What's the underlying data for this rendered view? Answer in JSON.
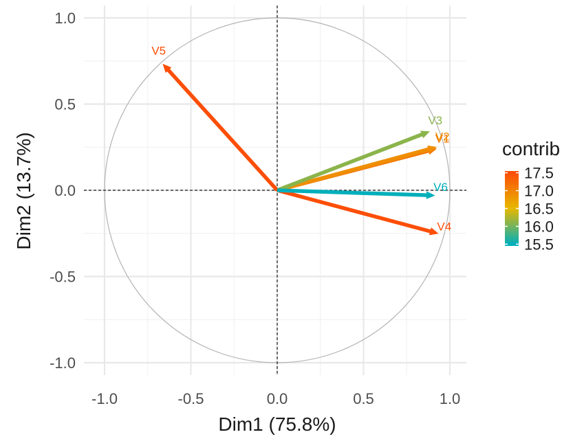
{
  "chart_data": {
    "type": "scatter",
    "subtype": "pca-variable-correlation-circle",
    "title": "",
    "xlabel": "Dim1 (75.8%)",
    "ylabel": "Dim2 (13.7%)",
    "xlim": [
      -1.0,
      1.0
    ],
    "ylim": [
      -1.0,
      1.0
    ],
    "x_ticks": [
      "-1.0",
      "-0.5",
      "0.0",
      "0.5",
      "1.0"
    ],
    "y_ticks": [
      "-1.0",
      "-0.5",
      "0.0",
      "0.5",
      "1.0"
    ],
    "grid": true,
    "unit_circle": true,
    "reference_lines": [
      0,
      0
    ],
    "variables": [
      {
        "name": "V1",
        "x": 0.92,
        "y": 0.24,
        "contrib": 17.1
      },
      {
        "name": "V2",
        "x": 0.92,
        "y": 0.25,
        "contrib": 16.9
      },
      {
        "name": "V3",
        "x": 0.88,
        "y": 0.34,
        "contrib": 16.1
      },
      {
        "name": "V4",
        "x": 0.93,
        "y": -0.25,
        "contrib": 17.5
      },
      {
        "name": "V5",
        "x": -0.66,
        "y": 0.73,
        "contrib": 17.5
      },
      {
        "name": "V6",
        "x": 0.91,
        "y": -0.03,
        "contrib": 15.5
      }
    ],
    "color_scale": {
      "title": "contrib",
      "min": 15.45,
      "max": 17.55,
      "stops": [
        {
          "value": 15.5,
          "color": "#00AFBB"
        },
        {
          "value": 16.5,
          "color": "#E7B800"
        },
        {
          "value": 17.5,
          "color": "#FC4E07"
        }
      ],
      "ticks": [
        "15.5",
        "16.0",
        "16.5",
        "17.0",
        "17.5"
      ],
      "position": "right"
    }
  }
}
